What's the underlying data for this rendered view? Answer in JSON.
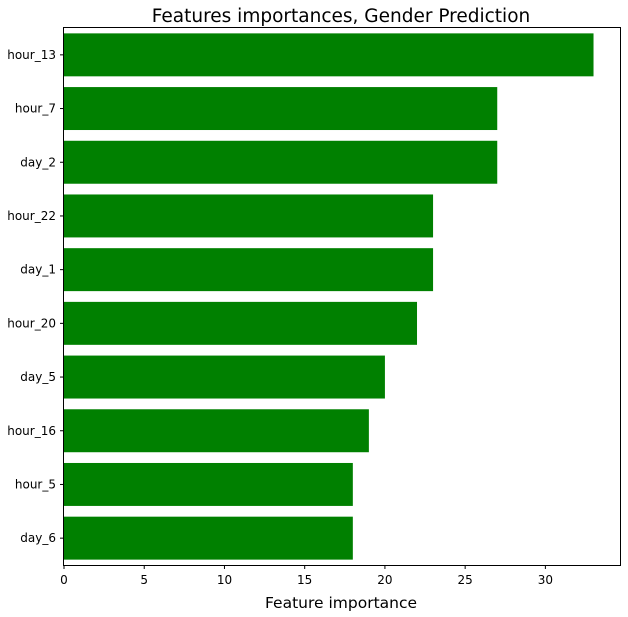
{
  "chart_data": {
    "type": "bar",
    "orientation": "horizontal",
    "title": "Features importances, Gender Prediction",
    "xlabel": "Feature importance",
    "ylabel": "",
    "categories": [
      "hour_13",
      "hour_7",
      "day_2",
      "hour_22",
      "day_1",
      "hour_20",
      "day_5",
      "hour_16",
      "hour_5",
      "day_6"
    ],
    "values": [
      33,
      27,
      27,
      23,
      23,
      22,
      20,
      19,
      18,
      18
    ],
    "xlim": [
      0,
      34.65
    ],
    "xticks": [
      0,
      5,
      10,
      15,
      20,
      25,
      30
    ],
    "grid": false,
    "legend": "none",
    "bar_color": "#008000"
  }
}
